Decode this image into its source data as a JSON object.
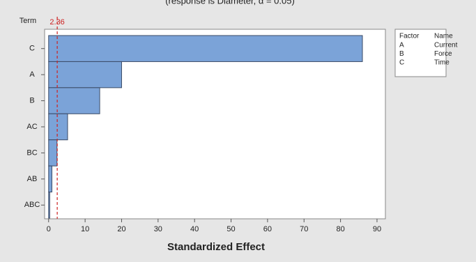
{
  "chart_data": {
    "type": "bar",
    "orientation": "horizontal",
    "title": "(response is Diameter, α = 0.05)",
    "y_label": "Term",
    "x_label": "Standardized Effect",
    "categories": [
      "C",
      "A",
      "B",
      "AC",
      "BC",
      "AB",
      "ABC"
    ],
    "values": [
      86,
      20,
      14,
      5.2,
      2.3,
      0.9,
      0.3
    ],
    "color": "#7ba3d8",
    "xlim": [
      -1.1,
      92.3
    ],
    "xticks": [
      0,
      10,
      20,
      30,
      40,
      50,
      60,
      70,
      80,
      90
    ],
    "reference_line": 2.36,
    "reference_color": "#cc2222",
    "factor_table": {
      "header": [
        "Factor",
        "Name"
      ],
      "rows": [
        [
          "A",
          "Current"
        ],
        [
          "B",
          "Force"
        ],
        [
          "C",
          "Time"
        ]
      ]
    }
  }
}
